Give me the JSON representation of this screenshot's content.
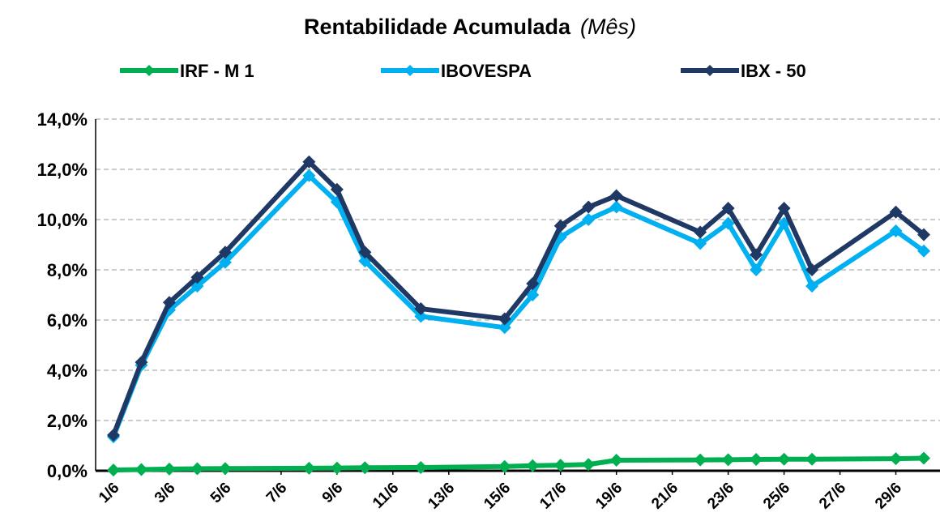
{
  "chart_data": {
    "type": "line",
    "title": "Rentabilidade Acumulada",
    "subtitle": "(Mês)",
    "x": [
      1,
      2,
      3,
      4,
      5,
      8,
      9,
      10,
      12,
      15,
      16,
      17,
      18,
      19,
      22,
      23,
      24,
      25,
      26,
      29,
      30
    ],
    "xlim": [
      1,
      30
    ],
    "xticks": [
      {
        "value": 1,
        "label": "1/6"
      },
      {
        "value": 3,
        "label": "3/6"
      },
      {
        "value": 5,
        "label": "5/6"
      },
      {
        "value": 7,
        "label": "7/6"
      },
      {
        "value": 9,
        "label": "9/6"
      },
      {
        "value": 11,
        "label": "11/6"
      },
      {
        "value": 13,
        "label": "13/6"
      },
      {
        "value": 15,
        "label": "15/6"
      },
      {
        "value": 17,
        "label": "17/6"
      },
      {
        "value": 19,
        "label": "19/6"
      },
      {
        "value": 21,
        "label": "21/6"
      },
      {
        "value": 23,
        "label": "23/6"
      },
      {
        "value": 25,
        "label": "25/6"
      },
      {
        "value": 27,
        "label": "27/6"
      },
      {
        "value": 29,
        "label": "29/6"
      }
    ],
    "ylim": [
      0,
      14
    ],
    "yticks": [
      {
        "value": 0,
        "label": "0,0%"
      },
      {
        "value": 2,
        "label": "2,0%"
      },
      {
        "value": 4,
        "label": "4,0%"
      },
      {
        "value": 6,
        "label": "6,0%"
      },
      {
        "value": 8,
        "label": "8,0%"
      },
      {
        "value": 10,
        "label": "10,0%"
      },
      {
        "value": 12,
        "label": "12,0%"
      },
      {
        "value": 14,
        "label": "14,0%"
      }
    ],
    "grid": true,
    "legend": "top",
    "series": [
      {
        "name": "IRF - M 1",
        "color": "#00b050",
        "values": [
          0.03,
          0.05,
          0.07,
          0.08,
          0.09,
          0.1,
          0.11,
          0.12,
          0.13,
          0.17,
          0.2,
          0.22,
          0.25,
          0.42,
          0.43,
          0.44,
          0.45,
          0.46,
          0.46,
          0.48,
          0.5
        ]
      },
      {
        "name": "IBOVESPA",
        "color": "#00b0f0",
        "values": [
          1.35,
          4.2,
          6.4,
          7.35,
          8.3,
          11.75,
          10.7,
          8.35,
          6.15,
          5.7,
          7.0,
          9.3,
          10.0,
          10.5,
          9.05,
          9.85,
          8.0,
          9.85,
          7.35,
          9.55,
          8.75
        ]
      },
      {
        "name": "IBX - 50",
        "color": "#1f3864",
        "values": [
          1.42,
          4.32,
          6.7,
          7.7,
          8.7,
          12.3,
          11.2,
          8.7,
          6.45,
          6.05,
          7.45,
          9.75,
          10.5,
          10.95,
          9.5,
          10.45,
          8.6,
          10.45,
          8.0,
          10.3,
          9.4
        ]
      }
    ]
  }
}
